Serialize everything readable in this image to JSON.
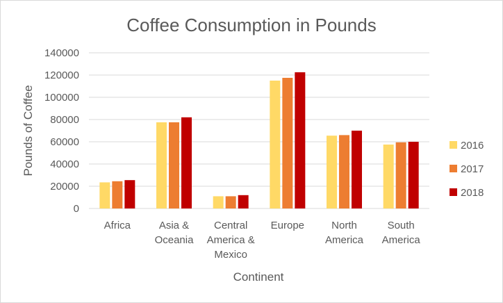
{
  "chart_data": {
    "type": "bar",
    "title": "Coffee Consumption in Pounds",
    "xlabel": "Continent",
    "ylabel": "Pounds of Coffee",
    "ylim": [
      0,
      140000
    ],
    "yticks": [
      "0",
      "20000",
      "40000",
      "60000",
      "80000",
      "100000",
      "120000",
      "140000"
    ],
    "grid": true,
    "legend_position": "right",
    "categories": [
      [
        "Africa"
      ],
      [
        "Asia &",
        "Oceania"
      ],
      [
        "Central",
        "America &",
        "Mexico"
      ],
      [
        "Europe"
      ],
      [
        "North",
        "America"
      ],
      [
        "South",
        "America"
      ]
    ],
    "series": [
      {
        "name": "2016",
        "color": "#ffd966",
        "values": [
          23500,
          77500,
          11000,
          115000,
          65500,
          57500
        ]
      },
      {
        "name": "2017",
        "color": "#ed7d31",
        "values": [
          24500,
          77500,
          11000,
          117500,
          66000,
          59500
        ]
      },
      {
        "name": "2018",
        "color": "#c00000",
        "values": [
          25500,
          82000,
          12000,
          122500,
          70000,
          60000
        ]
      }
    ]
  }
}
